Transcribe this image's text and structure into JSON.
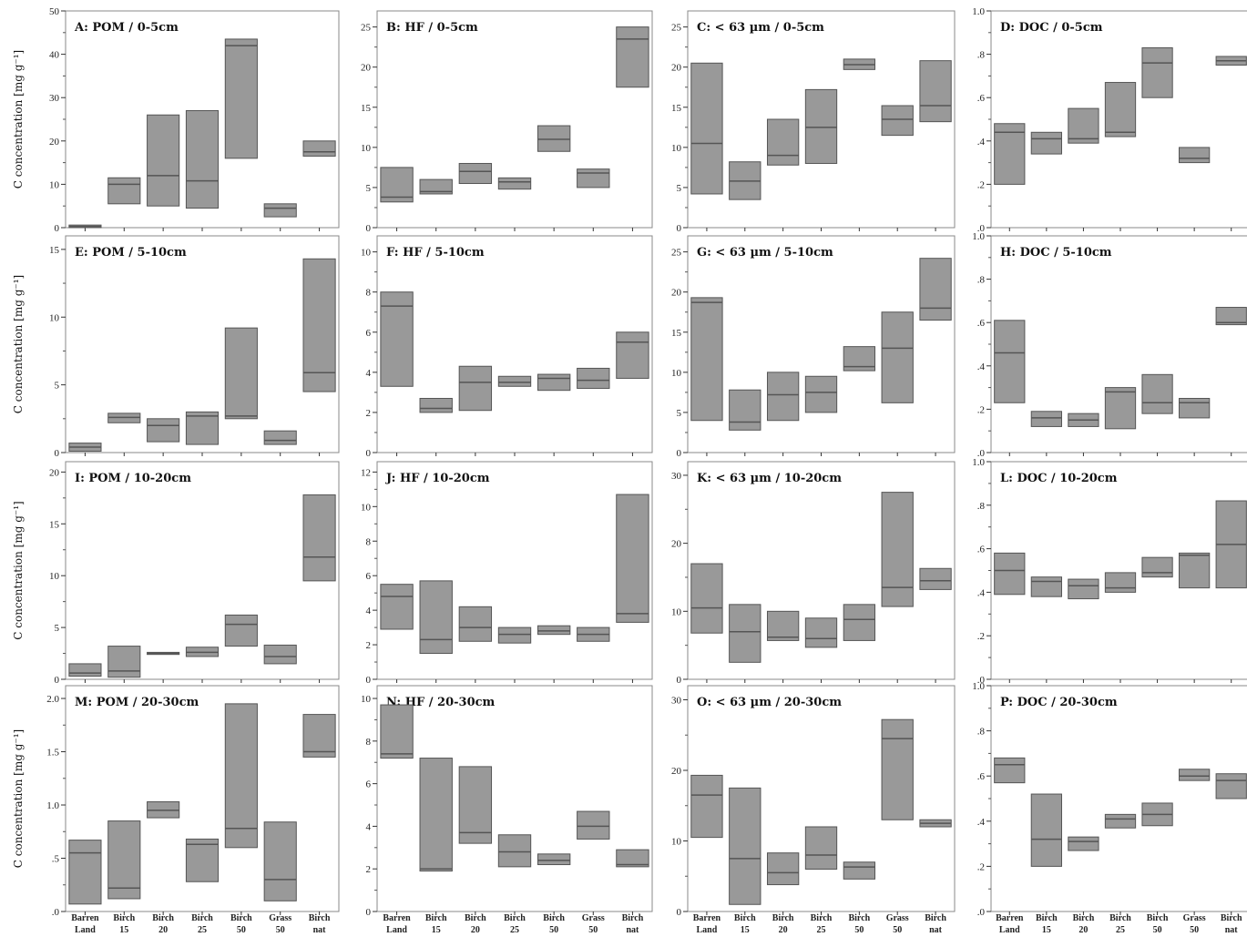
{
  "figure": {
    "ylabel": "C concentration [mg g⁻¹]",
    "categories": [
      {
        "line1": "Barren",
        "line2": "Land"
      },
      {
        "line1": "Birch",
        "line2": "15"
      },
      {
        "line1": "Birch",
        "line2": "20"
      },
      {
        "line1": "Birch",
        "line2": "25"
      },
      {
        "line1": "Birch",
        "line2": "50"
      },
      {
        "line1": "Grass",
        "line2": "50"
      },
      {
        "line1": "Birch",
        "line2": "nat"
      }
    ]
  },
  "colors": {
    "box_fill": "#999999",
    "box_stroke": "#555555",
    "median": "#555555",
    "frame": "#888888"
  },
  "chart_data": [
    {
      "type": "box",
      "title": "A: POM / 0-5cm",
      "ylim": [
        0,
        50
      ],
      "yticks": [
        0,
        10,
        20,
        30,
        40,
        50
      ],
      "ytick_labels": [
        "0",
        "10",
        "20",
        "30",
        "40",
        "50"
      ],
      "boxes": [
        {
          "low": 0,
          "median": 0.3,
          "high": 0.6
        },
        {
          "low": 5.5,
          "median": 10,
          "high": 11.5
        },
        {
          "low": 5,
          "median": 12,
          "high": 26
        },
        {
          "low": 4.5,
          "median": 10.8,
          "high": 27
        },
        {
          "low": 16,
          "median": 42,
          "high": 43.5
        },
        {
          "low": 2.5,
          "median": 4.5,
          "high": 5.5
        },
        {
          "low": 16.5,
          "median": 17.5,
          "high": 20
        }
      ]
    },
    {
      "type": "box",
      "title": "B: HF / 0-5cm",
      "ylim": [
        0,
        27
      ],
      "yticks": [
        0,
        5,
        10,
        15,
        20,
        25
      ],
      "ytick_labels": [
        "0",
        "5",
        "10",
        "15",
        "20",
        "25"
      ],
      "boxes": [
        {
          "low": 3.2,
          "median": 3.8,
          "high": 7.5
        },
        {
          "low": 4.2,
          "median": 4.5,
          "high": 6
        },
        {
          "low": 5.5,
          "median": 7,
          "high": 8
        },
        {
          "low": 4.8,
          "median": 5.7,
          "high": 6.2
        },
        {
          "low": 9.5,
          "median": 11,
          "high": 12.7
        },
        {
          "low": 5,
          "median": 6.8,
          "high": 7.3
        },
        {
          "low": 17.5,
          "median": 23.5,
          "high": 25
        }
      ]
    },
    {
      "type": "box",
      "title": "C: < 63 µm / 0-5cm",
      "ylim": [
        0,
        27
      ],
      "yticks": [
        0,
        5,
        10,
        15,
        20,
        25
      ],
      "ytick_labels": [
        "0",
        "5",
        "10",
        "15",
        "20",
        "25"
      ],
      "boxes": [
        {
          "low": 4.2,
          "median": 10.5,
          "high": 20.5
        },
        {
          "low": 3.5,
          "median": 5.8,
          "high": 8.2
        },
        {
          "low": 7.8,
          "median": 9,
          "high": 13.5
        },
        {
          "low": 8,
          "median": 12.5,
          "high": 17.2
        },
        {
          "low": 19.7,
          "median": 20.3,
          "high": 21
        },
        {
          "low": 11.5,
          "median": 13.5,
          "high": 15.2
        },
        {
          "low": 13.2,
          "median": 15.2,
          "high": 20.8
        }
      ]
    },
    {
      "type": "box",
      "title": "D: DOC / 0-5cm",
      "ylim": [
        0,
        1.0
      ],
      "yticks": [
        0,
        0.2,
        0.4,
        0.6,
        0.8,
        1.0
      ],
      "ytick_labels": [
        ".0",
        ".2",
        ".4",
        ".6",
        ".8",
        "1.0"
      ],
      "boxes": [
        {
          "low": 0.2,
          "median": 0.44,
          "high": 0.48
        },
        {
          "low": 0.34,
          "median": 0.41,
          "high": 0.44
        },
        {
          "low": 0.39,
          "median": 0.41,
          "high": 0.55
        },
        {
          "low": 0.42,
          "median": 0.44,
          "high": 0.67
        },
        {
          "low": 0.6,
          "median": 0.76,
          "high": 0.83
        },
        {
          "low": 0.3,
          "median": 0.32,
          "high": 0.37
        },
        {
          "low": 0.75,
          "median": 0.77,
          "high": 0.79
        }
      ]
    },
    {
      "type": "box",
      "title": "E: POM / 5-10cm",
      "ylim": [
        0,
        16
      ],
      "yticks": [
        0,
        5,
        10,
        15
      ],
      "ytick_labels": [
        "0",
        "5",
        "10",
        "15"
      ],
      "boxes": [
        {
          "low": 0.1,
          "median": 0.4,
          "high": 0.7
        },
        {
          "low": 2.2,
          "median": 2.6,
          "high": 2.9
        },
        {
          "low": 0.8,
          "median": 2,
          "high": 2.5
        },
        {
          "low": 0.6,
          "median": 2.7,
          "high": 3
        },
        {
          "low": 2.5,
          "median": 2.7,
          "high": 9.2
        },
        {
          "low": 0.6,
          "median": 0.9,
          "high": 1.6
        },
        {
          "low": 4.5,
          "median": 5.9,
          "high": 14.3
        }
      ]
    },
    {
      "type": "box",
      "title": "F: HF / 5-10cm",
      "ylim": [
        0,
        10.8
      ],
      "yticks": [
        0,
        2,
        4,
        6,
        8,
        10
      ],
      "ytick_labels": [
        "0",
        "2",
        "4",
        "6",
        "8",
        "10"
      ],
      "boxes": [
        {
          "low": 3.3,
          "median": 7.3,
          "high": 8
        },
        {
          "low": 2,
          "median": 2.2,
          "high": 2.7
        },
        {
          "low": 2.1,
          "median": 3.5,
          "high": 4.3
        },
        {
          "low": 3.3,
          "median": 3.5,
          "high": 3.8
        },
        {
          "low": 3.1,
          "median": 3.7,
          "high": 3.9
        },
        {
          "low": 3.2,
          "median": 3.6,
          "high": 4.2
        },
        {
          "low": 3.7,
          "median": 5.5,
          "high": 6
        }
      ]
    },
    {
      "type": "box",
      "title": "G: < 63 µm / 5-10cm",
      "ylim": [
        0,
        27
      ],
      "yticks": [
        0,
        5,
        10,
        15,
        20,
        25
      ],
      "ytick_labels": [
        "0",
        "5",
        "10",
        "15",
        "20",
        "25"
      ],
      "boxes": [
        {
          "low": 4,
          "median": 18.7,
          "high": 19.3
        },
        {
          "low": 2.8,
          "median": 3.8,
          "high": 7.8
        },
        {
          "low": 4,
          "median": 7.2,
          "high": 10
        },
        {
          "low": 5,
          "median": 7.5,
          "high": 9.5
        },
        {
          "low": 10.2,
          "median": 10.7,
          "high": 13.2
        },
        {
          "low": 6.2,
          "median": 13,
          "high": 17.5
        },
        {
          "low": 16.5,
          "median": 18,
          "high": 24.2
        }
      ]
    },
    {
      "type": "box",
      "title": "H: DOC / 5-10cm",
      "ylim": [
        0,
        1.0
      ],
      "yticks": [
        0,
        0.2,
        0.4,
        0.6,
        0.8,
        1.0
      ],
      "ytick_labels": [
        ".0",
        ".2",
        ".4",
        ".6",
        ".8",
        "1.0"
      ],
      "boxes": [
        {
          "low": 0.23,
          "median": 0.46,
          "high": 0.61
        },
        {
          "low": 0.12,
          "median": 0.16,
          "high": 0.19
        },
        {
          "low": 0.12,
          "median": 0.15,
          "high": 0.18
        },
        {
          "low": 0.11,
          "median": 0.28,
          "high": 0.3
        },
        {
          "low": 0.18,
          "median": 0.23,
          "high": 0.36
        },
        {
          "low": 0.16,
          "median": 0.23,
          "high": 0.25
        },
        {
          "low": 0.59,
          "median": 0.6,
          "high": 0.67
        }
      ]
    },
    {
      "type": "box",
      "title": "I: POM / 10-20cm",
      "ylim": [
        0,
        21
      ],
      "yticks": [
        0,
        5,
        10,
        15,
        20
      ],
      "ytick_labels": [
        "0",
        "5",
        "10",
        "15",
        "20"
      ],
      "boxes": [
        {
          "low": 0.3,
          "median": 0.6,
          "high": 1.5
        },
        {
          "low": 0.2,
          "median": 0.8,
          "high": 3.2
        },
        {
          "low": 2.4,
          "median": 2.5,
          "high": 2.6
        },
        {
          "low": 2.2,
          "median": 2.6,
          "high": 3.1
        },
        {
          "low": 3.2,
          "median": 5.3,
          "high": 6.2
        },
        {
          "low": 1.5,
          "median": 2.2,
          "high": 3.3
        },
        {
          "low": 9.5,
          "median": 11.8,
          "high": 17.8
        }
      ]
    },
    {
      "type": "box",
      "title": "J: HF / 10-20cm",
      "ylim": [
        0,
        12.6
      ],
      "yticks": [
        0,
        2,
        4,
        6,
        8,
        10,
        12
      ],
      "ytick_labels": [
        "0",
        "2",
        "4",
        "6",
        "8",
        "10",
        "12"
      ],
      "boxes": [
        {
          "low": 2.9,
          "median": 4.8,
          "high": 5.5
        },
        {
          "low": 1.5,
          "median": 2.3,
          "high": 5.7
        },
        {
          "low": 2.2,
          "median": 3,
          "high": 4.2
        },
        {
          "low": 2.1,
          "median": 2.6,
          "high": 3
        },
        {
          "low": 2.6,
          "median": 2.8,
          "high": 3.1
        },
        {
          "low": 2.2,
          "median": 2.6,
          "high": 3
        },
        {
          "low": 3.3,
          "median": 3.8,
          "high": 10.7
        }
      ]
    },
    {
      "type": "box",
      "title": "K: < 63 µm / 10-20cm",
      "ylim": [
        0,
        32
      ],
      "yticks": [
        0,
        10,
        20,
        30
      ],
      "ytick_labels": [
        "0",
        "10",
        "20",
        "30"
      ],
      "boxes": [
        {
          "low": 6.8,
          "median": 10.5,
          "high": 17
        },
        {
          "low": 2.5,
          "median": 7,
          "high": 11
        },
        {
          "low": 5.7,
          "median": 6.2,
          "high": 10
        },
        {
          "low": 4.7,
          "median": 6,
          "high": 9
        },
        {
          "low": 5.7,
          "median": 8.8,
          "high": 11
        },
        {
          "low": 10.7,
          "median": 13.5,
          "high": 27.5
        },
        {
          "low": 13.2,
          "median": 14.5,
          "high": 16.3
        }
      ]
    },
    {
      "type": "box",
      "title": "L: DOC / 10-20cm",
      "ylim": [
        0,
        1.0
      ],
      "yticks": [
        0,
        0.2,
        0.4,
        0.6,
        0.8,
        1.0
      ],
      "ytick_labels": [
        ".0",
        ".2",
        ".4",
        ".6",
        ".8",
        "1.0"
      ],
      "boxes": [
        {
          "low": 0.39,
          "median": 0.5,
          "high": 0.58
        },
        {
          "low": 0.38,
          "median": 0.45,
          "high": 0.47
        },
        {
          "low": 0.37,
          "median": 0.43,
          "high": 0.46
        },
        {
          "low": 0.4,
          "median": 0.42,
          "high": 0.49
        },
        {
          "low": 0.47,
          "median": 0.49,
          "high": 0.56
        },
        {
          "low": 0.42,
          "median": 0.57,
          "high": 0.58
        },
        {
          "low": 0.42,
          "median": 0.62,
          "high": 0.82
        }
      ]
    },
    {
      "type": "box",
      "title": "M: POM / 20-30cm",
      "ylim": [
        0,
        2.12
      ],
      "yticks": [
        0,
        0.5,
        1.0,
        1.5,
        2.0
      ],
      "ytick_labels": [
        ".0",
        ".5",
        "1.0",
        "1.5",
        "2.0"
      ],
      "boxes": [
        {
          "low": 0.07,
          "median": 0.55,
          "high": 0.67
        },
        {
          "low": 0.12,
          "median": 0.22,
          "high": 0.85
        },
        {
          "low": 0.88,
          "median": 0.95,
          "high": 1.03
        },
        {
          "low": 0.28,
          "median": 0.63,
          "high": 0.68
        },
        {
          "low": 0.6,
          "median": 0.78,
          "high": 1.95
        },
        {
          "low": 0.1,
          "median": 0.3,
          "high": 0.84
        },
        {
          "low": 1.45,
          "median": 1.5,
          "high": 1.85
        }
      ]
    },
    {
      "type": "box",
      "title": "N: HF / 20-30cm",
      "ylim": [
        0,
        10.6
      ],
      "yticks": [
        0,
        2,
        4,
        6,
        8,
        10
      ],
      "ytick_labels": [
        "0",
        "2",
        "4",
        "6",
        "8",
        "10"
      ],
      "boxes": [
        {
          "low": 7.2,
          "median": 7.4,
          "high": 9.7
        },
        {
          "low": 1.9,
          "median": 2,
          "high": 7.2
        },
        {
          "low": 3.2,
          "median": 3.7,
          "high": 6.8
        },
        {
          "low": 2.1,
          "median": 2.8,
          "high": 3.6
        },
        {
          "low": 2.2,
          "median": 2.4,
          "high": 2.7
        },
        {
          "low": 3.4,
          "median": 4,
          "high": 4.7
        },
        {
          "low": 2.1,
          "median": 2.2,
          "high": 2.9
        }
      ]
    },
    {
      "type": "box",
      "title": "O: < 63 µm / 20-30cm",
      "ylim": [
        0,
        32
      ],
      "yticks": [
        0,
        10,
        20,
        30
      ],
      "ytick_labels": [
        "0",
        "10",
        "20",
        "30"
      ],
      "boxes": [
        {
          "low": 10.5,
          "median": 16.5,
          "high": 19.3
        },
        {
          "low": 1,
          "median": 7.5,
          "high": 17.5
        },
        {
          "low": 3.8,
          "median": 5.5,
          "high": 8.3
        },
        {
          "low": 6,
          "median": 8,
          "high": 12
        },
        {
          "low": 4.6,
          "median": 6.3,
          "high": 7
        },
        {
          "low": 13,
          "median": 24.5,
          "high": 27.2
        },
        {
          "low": 12,
          "median": 12.5,
          "high": 13
        }
      ]
    },
    {
      "type": "box",
      "title": "P: DOC / 20-30cm",
      "ylim": [
        0,
        1.0
      ],
      "yticks": [
        0,
        0.2,
        0.4,
        0.6,
        0.8,
        1.0
      ],
      "ytick_labels": [
        ".0",
        ".2",
        ".4",
        ".6",
        ".8",
        "1.0"
      ],
      "boxes": [
        {
          "low": 0.57,
          "median": 0.65,
          "high": 0.68
        },
        {
          "low": 0.2,
          "median": 0.32,
          "high": 0.52
        },
        {
          "low": 0.27,
          "median": 0.31,
          "high": 0.33
        },
        {
          "low": 0.37,
          "median": 0.41,
          "high": 0.43
        },
        {
          "low": 0.38,
          "median": 0.43,
          "high": 0.48
        },
        {
          "low": 0.58,
          "median": 0.6,
          "high": 0.63
        },
        {
          "low": 0.5,
          "median": 0.58,
          "high": 0.61
        }
      ]
    }
  ]
}
